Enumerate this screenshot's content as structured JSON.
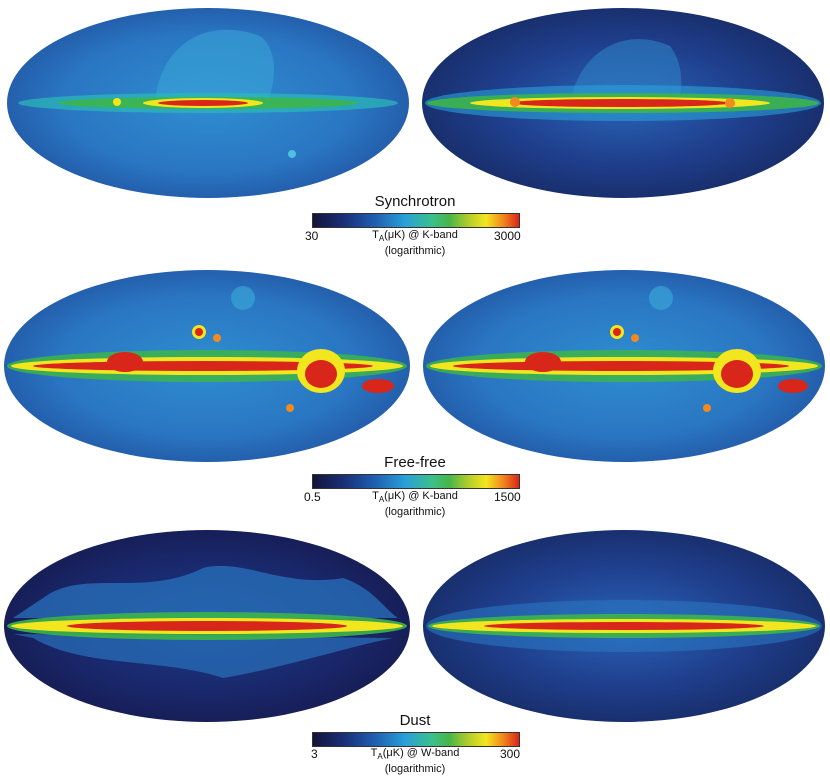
{
  "panels": [
    {
      "title": "Synchrotron",
      "scale_min": "30",
      "scale_max": "3000",
      "unit_main": "T",
      "unit_sub": "A",
      "unit_rest": "(μK) @ K-band",
      "scale_type": "(logarithmic)",
      "left_map": "synchrotron-sky-map",
      "right_map": "synchrotron-sky-map"
    },
    {
      "title": "Free-free",
      "scale_min": "0.5",
      "scale_max": "1500",
      "unit_main": "T",
      "unit_sub": "A",
      "unit_rest": "(μK) @ K-band",
      "scale_type": "(logarithmic)",
      "left_map": "free-free-sky-map",
      "right_map": "free-free-sky-map"
    },
    {
      "title": "Dust",
      "scale_min": "3",
      "scale_max": "300",
      "unit_main": "T",
      "unit_sub": "A",
      "unit_rest": "(μK) @ W-band",
      "scale_type": "(logarithmic)",
      "left_map": "dust-sky-map",
      "right_map": "dust-sky-map"
    }
  ],
  "colors": {
    "dark": "#14143a",
    "low": "#1e5fb0",
    "mid": "#2aa0d8",
    "green": "#3cb54a",
    "yellow": "#f2e61e",
    "red": "#d8261a"
  }
}
